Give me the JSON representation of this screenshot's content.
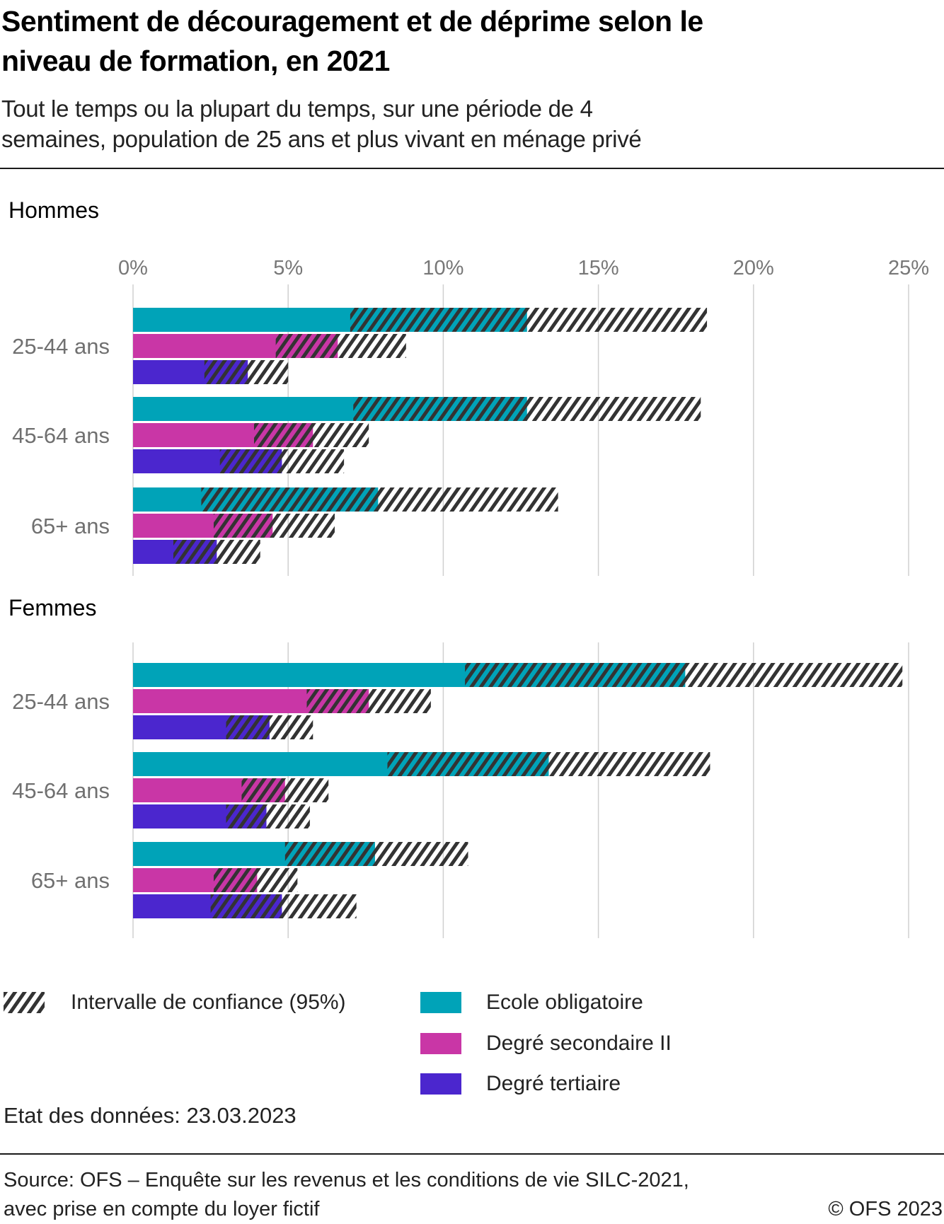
{
  "header": {
    "title_line1": "Sentiment de découragement et de déprime selon le",
    "title_line2": "niveau de formation, en 2021",
    "subtitle_line1": "Tout le temps ou la plupart du temps, sur une période de 4",
    "subtitle_line2": "semaines, population de 25 ans et plus vivant en ménage privé"
  },
  "legend": {
    "ci_label": "Intervalle de confiance (95%)",
    "series": [
      {
        "name": "Ecole obligatoire",
        "color": "#00A3B8"
      },
      {
        "name": "Degré secondaire II",
        "color": "#C936A6"
      },
      {
        "name": "Degré tertiaire",
        "color": "#4B26CE"
      }
    ]
  },
  "footer": {
    "data_state": "Etat des données: 23.03.2023",
    "source_line1": "Source: OFS – Enquête sur les revenus et les conditions de vie SILC-2021,",
    "source_line2": "avec prise en compte du loyer fictif",
    "copyright": "© OFS 2023"
  },
  "chart_data": {
    "type": "bar",
    "orientation": "horizontal",
    "title": "Sentiment de découragement et de déprime selon le niveau de formation, en 2021",
    "subtitle": "Tout le temps ou la plupart du temps, sur une période de 4 semaines, population de 25 ans et plus vivant en ménage privé",
    "xlabel": "",
    "ylabel": "",
    "xlim": [
      0,
      25
    ],
    "x_ticks": [
      0,
      5,
      10,
      15,
      20,
      25
    ],
    "x_tick_labels": [
      "0%",
      "5%",
      "10%",
      "15%",
      "20%",
      "25%"
    ],
    "grid": true,
    "legend_position": "bottom",
    "colors": {
      "ecole": "#00A3B8",
      "secondaire": "#C936A6",
      "tertiaire": "#4B26CE",
      "ci_hatch": "#333333",
      "grid": "#d0d0d0"
    },
    "series_names": [
      "Ecole obligatoire",
      "Degré secondaire II",
      "Degré tertiaire"
    ],
    "categories": [
      "25-44 ans",
      "45-64 ans",
      "65+ ans"
    ],
    "panels": [
      {
        "name": "Hommes",
        "groups": [
          {
            "category": "25-44 ans",
            "bars": [
              {
                "series": "Ecole obligatoire",
                "value": 12.7,
                "ci_low": 7.0,
                "ci_high": 18.5
              },
              {
                "series": "Degré secondaire II",
                "value": 6.6,
                "ci_low": 4.6,
                "ci_high": 8.8
              },
              {
                "series": "Degré tertiaire",
                "value": 3.7,
                "ci_low": 2.3,
                "ci_high": 5.0
              }
            ]
          },
          {
            "category": "45-64 ans",
            "bars": [
              {
                "series": "Ecole obligatoire",
                "value": 12.7,
                "ci_low": 7.1,
                "ci_high": 18.3
              },
              {
                "series": "Degré secondaire II",
                "value": 5.8,
                "ci_low": 3.9,
                "ci_high": 7.6
              },
              {
                "series": "Degré tertiaire",
                "value": 4.8,
                "ci_low": 2.8,
                "ci_high": 6.8
              }
            ]
          },
          {
            "category": "65+ ans",
            "bars": [
              {
                "series": "Ecole obligatoire",
                "value": 7.9,
                "ci_low": 2.2,
                "ci_high": 13.7
              },
              {
                "series": "Degré secondaire II",
                "value": 4.5,
                "ci_low": 2.6,
                "ci_high": 6.5
              },
              {
                "series": "Degré tertiaire",
                "value": 2.7,
                "ci_low": 1.3,
                "ci_high": 4.1
              }
            ]
          }
        ]
      },
      {
        "name": "Femmes",
        "groups": [
          {
            "category": "25-44 ans",
            "bars": [
              {
                "series": "Ecole obligatoire",
                "value": 17.8,
                "ci_low": 10.7,
                "ci_high": 24.8
              },
              {
                "series": "Degré secondaire II",
                "value": 7.6,
                "ci_low": 5.6,
                "ci_high": 9.6
              },
              {
                "series": "Degré tertiaire",
                "value": 4.4,
                "ci_low": 3.0,
                "ci_high": 5.8
              }
            ]
          },
          {
            "category": "45-64 ans",
            "bars": [
              {
                "series": "Ecole obligatoire",
                "value": 13.4,
                "ci_low": 8.2,
                "ci_high": 18.6
              },
              {
                "series": "Degré secondaire II",
                "value": 4.9,
                "ci_low": 3.5,
                "ci_high": 6.3
              },
              {
                "series": "Degré tertiaire",
                "value": 4.3,
                "ci_low": 3.0,
                "ci_high": 5.7
              }
            ]
          },
          {
            "category": "65+ ans",
            "bars": [
              {
                "series": "Ecole obligatoire",
                "value": 7.8,
                "ci_low": 4.9,
                "ci_high": 10.8
              },
              {
                "series": "Degré secondaire II",
                "value": 4.0,
                "ci_low": 2.6,
                "ci_high": 5.3
              },
              {
                "series": "Degré tertiaire",
                "value": 4.8,
                "ci_low": 2.5,
                "ci_high": 7.2
              }
            ]
          }
        ]
      }
    ]
  }
}
